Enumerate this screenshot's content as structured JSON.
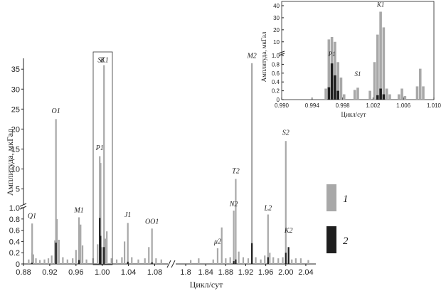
{
  "chart_data": {
    "type": "bar",
    "ylabel": "Амплитуда, мкГал",
    "xlabel": "Цикл/сут",
    "legend": [
      {
        "name": "1",
        "color": "#a8a8a8"
      },
      {
        "name": "2",
        "color": "#1e1e1e"
      }
    ],
    "y_lower": {
      "range": [
        0,
        1.0
      ],
      "ticks": [
        "0",
        "0.2",
        "0.4",
        "0.6",
        "0.8",
        "1.0"
      ]
    },
    "y_upper": {
      "range": [
        1,
        37
      ],
      "ticks": [
        "5",
        "10",
        "15",
        "20",
        "25",
        "30",
        "35"
      ]
    },
    "x_left": {
      "range": [
        0.88,
        1.1
      ],
      "ticks": [
        "0.88",
        "0.92",
        "0.96",
        "1.00",
        "1.04",
        "1.08"
      ]
    },
    "x_right": {
      "range": [
        1.78,
        2.06
      ],
      "ticks": [
        "1.8",
        "1.84",
        "1.88",
        "1.92",
        "1.96",
        "2.00",
        "2.04"
      ]
    },
    "series1": [
      {
        "x": 0.888,
        "y": 0.08
      },
      {
        "x": 0.893,
        "y": 0.2
      },
      {
        "x": 0.895,
        "y": 0.17
      },
      {
        "x": 0.8932,
        "y": 0.72
      },
      {
        "x": 0.899,
        "y": 0.1
      },
      {
        "x": 0.905,
        "y": 0.07
      },
      {
        "x": 0.912,
        "y": 0.08
      },
      {
        "x": 0.918,
        "y": 0.1
      },
      {
        "x": 0.923,
        "y": 0.15
      },
      {
        "x": 0.928,
        "y": 0.42
      },
      {
        "x": 0.9295,
        "y": 22.5
      },
      {
        "x": 0.931,
        "y": 0.8
      },
      {
        "x": 0.934,
        "y": 0.43
      },
      {
        "x": 0.94,
        "y": 0.12
      },
      {
        "x": 0.947,
        "y": 0.08
      },
      {
        "x": 0.955,
        "y": 0.1
      },
      {
        "x": 0.96,
        "y": 0.25
      },
      {
        "x": 0.9646,
        "y": 0.83
      },
      {
        "x": 0.967,
        "y": 0.7
      },
      {
        "x": 0.97,
        "y": 0.33
      },
      {
        "x": 0.976,
        "y": 0.08
      },
      {
        "x": 0.986,
        "y": 0.1
      },
      {
        "x": 0.993,
        "y": 0.35
      },
      {
        "x": 0.9962,
        "y": 13.2
      },
      {
        "x": 0.9975,
        "y": 11.5
      },
      {
        "x": 1.0,
        "y": 0.3
      },
      {
        "x": 1.0027,
        "y": 36
      },
      {
        "x": 1.0045,
        "y": 0.45
      },
      {
        "x": 1.007,
        "y": 0.58
      },
      {
        "x": 1.014,
        "y": 0.1
      },
      {
        "x": 1.022,
        "y": 0.08
      },
      {
        "x": 1.03,
        "y": 0.12
      },
      {
        "x": 1.034,
        "y": 0.4
      },
      {
        "x": 1.039,
        "y": 0.73
      },
      {
        "x": 1.045,
        "y": 0.12
      },
      {
        "x": 1.055,
        "y": 0.08
      },
      {
        "x": 1.065,
        "y": 0.1
      },
      {
        "x": 1.071,
        "y": 0.3
      },
      {
        "x": 1.0758,
        "y": 0.63
      },
      {
        "x": 1.082,
        "y": 0.1
      },
      {
        "x": 1.09,
        "y": 0.08
      },
      {
        "x": 1.81,
        "y": 0.07
      },
      {
        "x": 1.826,
        "y": 0.1
      },
      {
        "x": 1.8638,
        "y": 0.28
      },
      {
        "x": 1.855,
        "y": 0.08
      },
      {
        "x": 1.872,
        "y": 0.65
      },
      {
        "x": 1.896,
        "y": 0.95
      },
      {
        "x": 1.88,
        "y": 0.1
      },
      {
        "x": 1.889,
        "y": 0.12
      },
      {
        "x": 1.9,
        "y": 7.5
      },
      {
        "x": 1.906,
        "y": 0.22
      },
      {
        "x": 1.915,
        "y": 0.12
      },
      {
        "x": 1.925,
        "y": 0.1
      },
      {
        "x": 1.9323,
        "y": 36.5
      },
      {
        "x": 1.94,
        "y": 0.12
      },
      {
        "x": 1.95,
        "y": 0.08
      },
      {
        "x": 1.958,
        "y": 0.15
      },
      {
        "x": 1.9645,
        "y": 0.88
      },
      {
        "x": 1.968,
        "y": 0.2
      },
      {
        "x": 1.975,
        "y": 0.12
      },
      {
        "x": 1.985,
        "y": 0.1
      },
      {
        "x": 1.994,
        "y": 0.12
      },
      {
        "x": 2.0,
        "y": 17
      },
      {
        "x": 2.0055,
        "y": 0.28
      },
      {
        "x": 2.012,
        "y": 0.08
      },
      {
        "x": 2.02,
        "y": 0.1
      },
      {
        "x": 2.03,
        "y": 0.1
      },
      {
        "x": 2.045,
        "y": 0.07
      }
    ],
    "series2": [
      {
        "x": 0.893,
        "y": 0.02
      },
      {
        "x": 0.9295,
        "y": 0.38
      },
      {
        "x": 0.9646,
        "y": 0.07
      },
      {
        "x": 0.9962,
        "y": 0.82
      },
      {
        "x": 0.9975,
        "y": 0.5
      },
      {
        "x": 1.0027,
        "y": 0.3
      },
      {
        "x": 1.039,
        "y": 0.04
      },
      {
        "x": 1.0758,
        "y": 0.03
      },
      {
        "x": 1.896,
        "y": 0.05
      },
      {
        "x": 1.9,
        "y": 0.08
      },
      {
        "x": 1.9323,
        "y": 0.37
      },
      {
        "x": 1.9645,
        "y": 0.12
      },
      {
        "x": 2.0,
        "y": 0.2
      },
      {
        "x": 2.0055,
        "y": 0.3
      }
    ],
    "wave_labels": [
      {
        "text": "Q1",
        "x": 0.893,
        "y": 0.78
      },
      {
        "text": "O1",
        "x": 0.9295,
        "y": 23.5
      },
      {
        "text": "M1",
        "x": 0.9646,
        "y": 0.88
      },
      {
        "text": "P1",
        "x": 0.9962,
        "y": 14.2
      },
      {
        "text": "S1",
        "x": 0.9985,
        "y": 36.2
      },
      {
        "text": "K1",
        "x": 1.0035,
        "y": 36.2
      },
      {
        "text": "J1",
        "x": 1.039,
        "y": 0.8
      },
      {
        "text": "OO1",
        "x": 1.0758,
        "y": 0.68
      },
      {
        "text": "μ2",
        "x": 1.8638,
        "y": 0.32
      },
      {
        "text": "N2",
        "x": 1.896,
        "y": 0.99
      },
      {
        "text": "T2",
        "x": 1.9,
        "y": 8.4
      },
      {
        "text": "M2",
        "x": 1.9323,
        "y": 37.3
      },
      {
        "text": "L2",
        "x": 1.9645,
        "y": 0.92
      },
      {
        "text": "S2",
        "x": 2.0,
        "y": 18
      },
      {
        "text": "K2",
        "x": 2.0055,
        "y": 0.52
      }
    ],
    "inset": {
      "xlabel": "Цикл/сут",
      "ylabel": "Амплитуда, мкГал",
      "x_range": [
        0.99,
        1.01
      ],
      "x_ticks": [
        "0.990",
        "0.994",
        "0.998",
        "1.002",
        "1.006",
        "1.010"
      ],
      "y_lower": {
        "range": [
          0,
          1.0
        ],
        "ticks": [
          "0",
          "0.2",
          "0.4",
          "0.6",
          "0.8",
          "1.0"
        ]
      },
      "y_upper": {
        "range": [
          1,
          40
        ],
        "ticks": [
          "10",
          "20",
          "30",
          "40"
        ]
      },
      "series1": [
        {
          "x": 0.9958,
          "y": 0.25
        },
        {
          "x": 0.9962,
          "y": 12
        },
        {
          "x": 0.9966,
          "y": 14
        },
        {
          "x": 0.997,
          "y": 10
        },
        {
          "x": 0.9974,
          "y": 0.85
        },
        {
          "x": 0.9978,
          "y": 0.5
        },
        {
          "x": 0.9982,
          "y": 0.12
        },
        {
          "x": 0.9996,
          "y": 0.22
        },
        {
          "x": 1.0,
          "y": 0.27
        },
        {
          "x": 1.0016,
          "y": 0.2
        },
        {
          "x": 1.0022,
          "y": 0.85
        },
        {
          "x": 1.0026,
          "y": 16
        },
        {
          "x": 1.003,
          "y": 35
        },
        {
          "x": 1.0034,
          "y": 22
        },
        {
          "x": 1.0038,
          "y": 0.25
        },
        {
          "x": 1.0042,
          "y": 0.12
        },
        {
          "x": 1.0054,
          "y": 0.12
        },
        {
          "x": 1.0058,
          "y": 0.25
        },
        {
          "x": 1.0062,
          "y": 0.08
        },
        {
          "x": 1.0078,
          "y": 0.3
        },
        {
          "x": 1.0082,
          "y": 0.7
        },
        {
          "x": 1.0086,
          "y": 0.3
        }
      ],
      "series2": [
        {
          "x": 0.9962,
          "y": 0.28
        },
        {
          "x": 0.9966,
          "y": 0.82
        },
        {
          "x": 0.997,
          "y": 0.55
        },
        {
          "x": 0.9974,
          "y": 0.2
        },
        {
          "x": 1.0026,
          "y": 0.1
        },
        {
          "x": 1.003,
          "y": 0.25
        },
        {
          "x": 1.0034,
          "y": 0.12
        }
      ],
      "wave_labels": [
        {
          "text": "P1",
          "x": 0.9966,
          "y": 0.95
        },
        {
          "text": "S1",
          "x": 1.0,
          "y": 0.5
        },
        {
          "text": "K1",
          "x": 1.003,
          "y": 38
        }
      ]
    }
  }
}
